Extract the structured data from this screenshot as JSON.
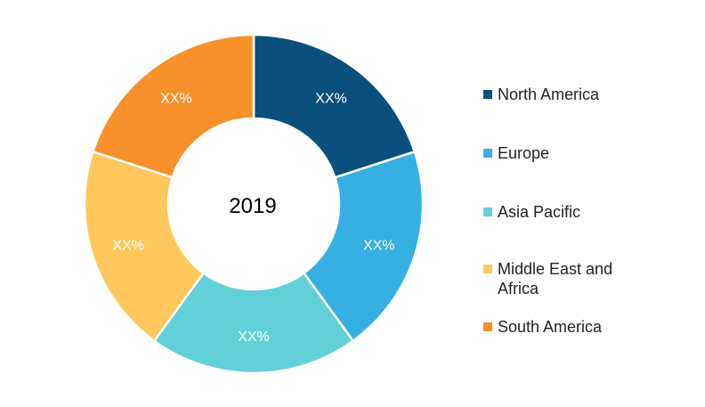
{
  "chart_data": {
    "type": "pie",
    "center_label": "2019",
    "categories": [
      "North America",
      "Europe",
      "Asia Pacific",
      "Middle East and Africa",
      "South America"
    ],
    "values": [
      20,
      20,
      20,
      20,
      20
    ],
    "slice_labels": [
      "XX%",
      "XX%",
      "XX%",
      "XX%",
      "XX%"
    ],
    "colors": [
      "#0B4F7C",
      "#36B0E3",
      "#62D0D8",
      "#FFC75C",
      "#F7912C"
    ],
    "legend_placement": "right"
  }
}
